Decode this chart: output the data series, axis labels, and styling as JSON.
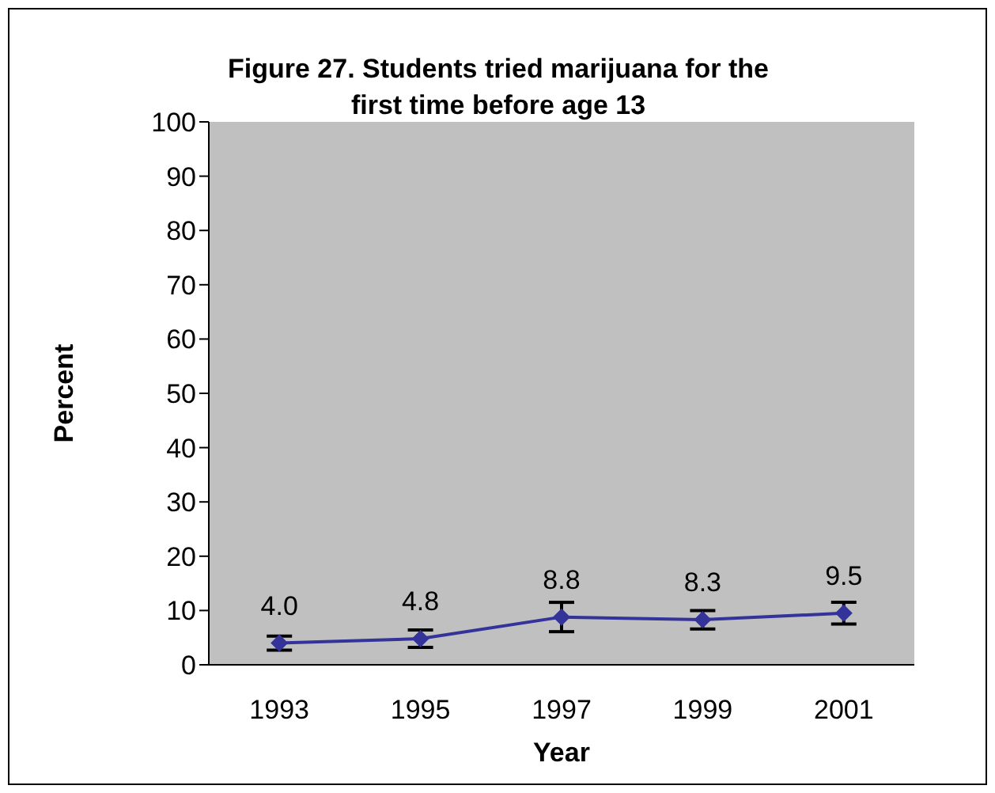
{
  "chart_data": {
    "type": "line",
    "title": "Figure 27. Students tried marijuana for the first time before age 13",
    "xlabel": "Year",
    "ylabel": "Percent",
    "categories": [
      "1993",
      "1995",
      "1997",
      "1999",
      "2001"
    ],
    "series": [
      {
        "color": "#333399",
        "values": [
          4.0,
          4.8,
          8.8,
          8.3,
          9.5
        ],
        "errors": [
          1.3,
          1.6,
          2.7,
          1.7,
          2.0
        ],
        "value_labels": [
          "4.0",
          "4.8",
          "8.8",
          "8.3",
          "9.5"
        ]
      }
    ],
    "ylim": [
      0,
      100
    ],
    "yticks": [
      0,
      10,
      20,
      30,
      40,
      50,
      60,
      70,
      80,
      90,
      100
    ],
    "grid": false,
    "marker": "diamond",
    "line_style": "solid"
  }
}
